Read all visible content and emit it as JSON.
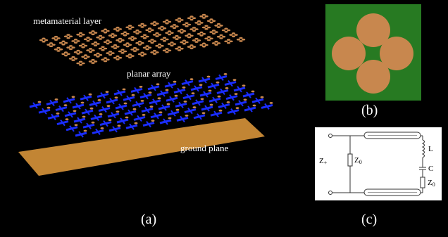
{
  "panel_a": {
    "metamaterial_label": "metamaterial layer",
    "array_label": "planar array",
    "ground_label": "ground plane",
    "caption": "(a)"
  },
  "panel_b": {
    "caption": "(b)"
  },
  "panel_c": {
    "caption": "(c)",
    "z_in": "Z",
    "z_in_sub": "+",
    "z0_left": "Z",
    "z0_left_sub": "0",
    "l_label": "L",
    "c_label": "C",
    "z0_right": "Z",
    "z0_right_sub": "0"
  },
  "colors": {
    "background": "#000000",
    "copper": "#c8874e",
    "ground": "#c28534",
    "substrate": "#277a22",
    "dipole_blue": "#1a2dff",
    "text": "#ffffff"
  }
}
